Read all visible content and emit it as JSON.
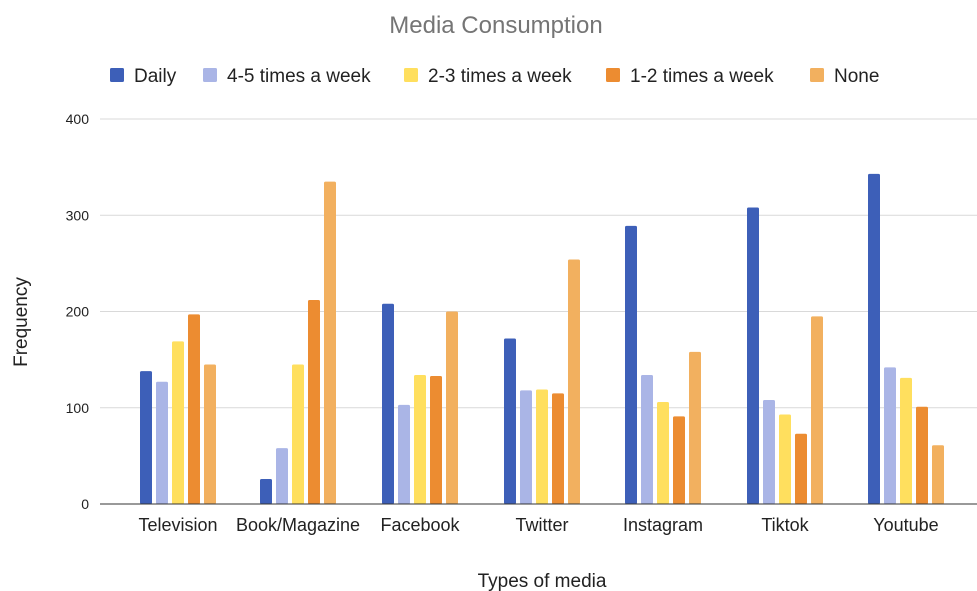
{
  "chart_data": {
    "type": "bar",
    "title": "Media Consumption",
    "xlabel": "Types of media",
    "ylabel": "Frequency",
    "ylim": [
      0,
      400
    ],
    "yticks": [
      0,
      100,
      200,
      300,
      400
    ],
    "grid": true,
    "legend_position": "top",
    "categories": [
      "Television",
      "Book/Magazine",
      "Facebook",
      "Twitter",
      "Instagram",
      "Tiktok",
      "Youtube"
    ],
    "series": [
      {
        "name": "Daily",
        "color": "#3d5fb8",
        "values": [
          138,
          26,
          208,
          172,
          289,
          308,
          343
        ]
      },
      {
        "name": "4-5 times a week",
        "color": "#aab5e6",
        "values": [
          127,
          58,
          103,
          118,
          134,
          108,
          142
        ]
      },
      {
        "name": "2-3 times a week",
        "color": "#ffdf5e",
        "values": [
          169,
          145,
          134,
          119,
          106,
          93,
          131
        ]
      },
      {
        "name": "1-2 times a week",
        "color": "#ec8c31",
        "values": [
          197,
          212,
          133,
          115,
          91,
          73,
          101
        ]
      },
      {
        "name": "None",
        "color": "#f2b05f",
        "values": [
          145,
          335,
          200,
          254,
          158,
          195,
          61
        ]
      }
    ]
  }
}
